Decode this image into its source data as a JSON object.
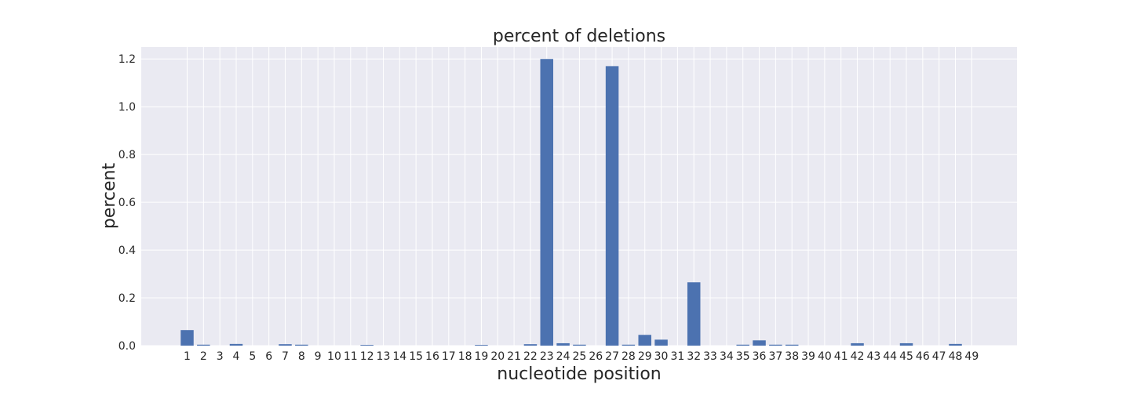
{
  "chart_data": {
    "type": "bar",
    "title": "percent of deletions",
    "xlabel": "nucleotide position",
    "ylabel": "percent",
    "categories": [
      "1",
      "2",
      "3",
      "4",
      "5",
      "6",
      "7",
      "8",
      "9",
      "10",
      "11",
      "12",
      "13",
      "14",
      "15",
      "16",
      "17",
      "18",
      "19",
      "20",
      "21",
      "22",
      "23",
      "24",
      "25",
      "26",
      "27",
      "28",
      "29",
      "30",
      "31",
      "32",
      "33",
      "34",
      "35",
      "36",
      "37",
      "38",
      "39",
      "40",
      "41",
      "42",
      "43",
      "44",
      "45",
      "46",
      "47",
      "48",
      "49"
    ],
    "values": [
      0.065,
      0.004,
      0,
      0.007,
      0,
      0,
      0.006,
      0.004,
      0,
      0,
      0,
      0.003,
      0,
      0,
      0,
      0,
      0,
      0,
      0.003,
      0,
      0,
      0.006,
      1.2,
      0.01,
      0.004,
      0,
      1.17,
      0.004,
      0.045,
      0.025,
      0,
      0.265,
      0,
      0,
      0.004,
      0.022,
      0.004,
      0.004,
      0,
      0,
      0,
      0.01,
      0,
      0,
      0.01,
      0,
      0,
      0.007,
      0
    ],
    "ylim": [
      0,
      1.25
    ],
    "yticks": [
      "0.0",
      "0.2",
      "0.4",
      "0.6",
      "0.8",
      "1.0",
      "1.2"
    ],
    "grid": true,
    "colors": {
      "bar": "#4c72b0",
      "plot_background": "#eaeaf2",
      "grid": "#ffffff",
      "text": "#262626"
    }
  }
}
